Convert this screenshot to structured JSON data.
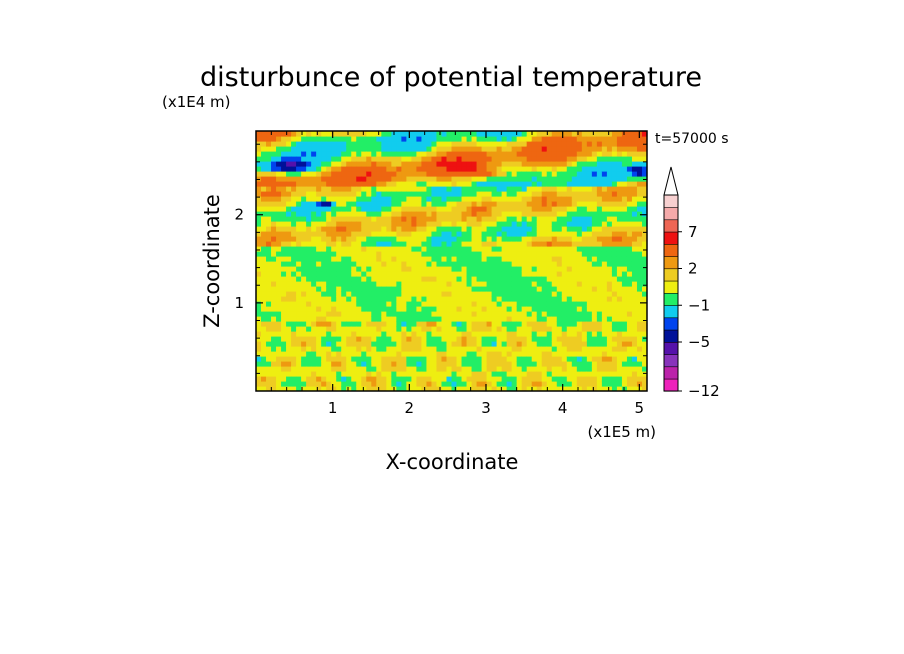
{
  "chart_data": {
    "type": "heatmap",
    "title": "disturbunce of potential temperature",
    "time_label": "t=57000 s",
    "xlabel": "X-coordinate",
    "ylabel": "Z-coordinate",
    "x_unit": "(x1E5 m)",
    "y_unit": "(x1E4 m)",
    "xlim": [
      0,
      5.1
    ],
    "ylim": [
      0,
      2.95
    ],
    "x_ticks": [
      "1",
      "2",
      "3",
      "4",
      "5"
    ],
    "y_ticks": [
      "1",
      "2"
    ],
    "colorbar": {
      "levels": [
        -12,
        -11,
        -9,
        -7,
        -5,
        -4,
        -3,
        -1,
        0,
        1,
        2,
        3,
        5,
        7,
        9,
        11
      ],
      "labels": [
        "-12",
        "-5",
        "-1",
        "2",
        "7"
      ],
      "colors": [
        "#ee22bb",
        "#bb22aa",
        "#8833bb",
        "#5511aa",
        "#001199",
        "#0044ee",
        "#11ccee",
        "#22ee66",
        "#eeee11",
        "#eecc22",
        "#ee9911",
        "#ee6611",
        "#ee1111",
        "#ee6655",
        "#f5aaaa",
        "#f7d0d0"
      ],
      "extend_max": true
    },
    "bands": [
      {
        "z_min": 0.0,
        "z_max": 0.82,
        "dominant": "1",
        "secondary": [
          "2",
          "0"
        ]
      },
      {
        "z_min": 0.82,
        "z_max": 1.65,
        "dominant": "0",
        "secondary": [
          "1"
        ]
      },
      {
        "z_min": 1.65,
        "z_max": 2.35,
        "dominant": "1",
        "secondary": [
          "0",
          "2",
          "-1",
          "3"
        ]
      },
      {
        "z_min": 2.35,
        "z_max": 2.95,
        "dominant": "1",
        "secondary": [
          "3",
          "5",
          "-1",
          "-4"
        ]
      }
    ]
  }
}
